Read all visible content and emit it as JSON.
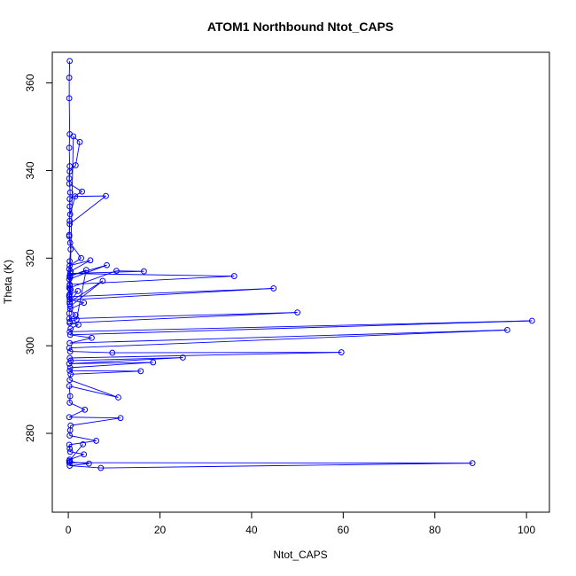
{
  "chart_data": {
    "type": "scatter",
    "title": "ATOM1 Northbound Ntot_CAPS",
    "xlabel": "Ntot_CAPS",
    "ylabel": "Theta (K)",
    "xlim": [
      -3.5,
      105
    ],
    "ylim": [
      262,
      367
    ],
    "x_ticks": [
      0,
      20,
      40,
      60,
      80,
      100
    ],
    "y_ticks": [
      280,
      300,
      320,
      340,
      360
    ],
    "x_tick_labels": [
      "0",
      "20",
      "40",
      "60",
      "80",
      "100"
    ],
    "y_tick_labels": [
      "280",
      "300",
      "320",
      "340",
      "360"
    ],
    "grid": false,
    "line_connected": true,
    "marker": "open-circle",
    "colors": {
      "series": "#0000ff",
      "axes": "#000000"
    },
    "series": [
      {
        "x": [
          0.3,
          0.2,
          0.2,
          0.3,
          0.2,
          0.3,
          0.2,
          0.4,
          0.3,
          0.3,
          0.2,
          0.5,
          0.3,
          0.2,
          0.4,
          0.3,
          0.2,
          0.3,
          1.1,
          2.5,
          1.6,
          0.3,
          0.2,
          3.0,
          0.3,
          0.4,
          1.5,
          8.2,
          0.3,
          0.2,
          0.4,
          2.8,
          0.3,
          4.8,
          0.5,
          0.3,
          8.4,
          0.2,
          0.4,
          0.3,
          2.1,
          0.3,
          7.5,
          0.4,
          0.2,
          0.3,
          1.8,
          3.9,
          0.3,
          0.2,
          10.5,
          16.5,
          0.4,
          36.2,
          0.3,
          0.5,
          0.2,
          44.8,
          0.3,
          3.4,
          0.4,
          1.6,
          0.2,
          50.0,
          0.3,
          2.2,
          0.5,
          0.3,
          101.2,
          0.4,
          5.1,
          0.3,
          95.8,
          0.2,
          0.4,
          9.6,
          59.6,
          0.3,
          0.5,
          25.0,
          0.2,
          18.5,
          0.4,
          0.3,
          15.8,
          0.5,
          0.3,
          10.9,
          0.2,
          0.4,
          0.3,
          3.6,
          0.2,
          11.4,
          0.5,
          0.4,
          0.3,
          6.1,
          0.2,
          0.3,
          0.4,
          3.4,
          0.3,
          0.2,
          88.2,
          7.1,
          0.3,
          4.5,
          0.4,
          0.2,
          3.2
        ],
        "y": [
          365.0,
          361.2,
          356.5,
          348.3,
          345.2,
          341.0,
          338.2,
          335.0,
          331.8,
          328.5,
          325.3,
          322.0,
          319.3,
          317.5,
          315.6,
          313.8,
          311.5,
          309.6,
          347.8,
          346.5,
          341.2,
          339.8,
          337.0,
          335.2,
          333.5,
          330.0,
          334.1,
          334.2,
          327.8,
          325.0,
          323.5,
          320.0,
          318.3,
          319.5,
          317.0,
          316.0,
          318.4,
          315.2,
          313.0,
          311.8,
          312.5,
          310.0,
          314.8,
          309.0,
          307.4,
          305.5,
          306.0,
          317.3,
          315.8,
          313.2,
          317.1,
          317.0,
          316.5,
          315.9,
          314.0,
          312.8,
          311.2,
          313.1,
          310.5,
          309.8,
          308.4,
          307.0,
          306.2,
          307.6,
          305.2,
          304.8,
          303.9,
          303.2,
          305.7,
          302.5,
          301.8,
          300.6,
          303.6,
          299.5,
          298.7,
          298.4,
          298.5,
          297.2,
          296.6,
          297.3,
          295.9,
          296.2,
          295.0,
          294.3,
          294.2,
          293.5,
          292.2,
          288.2,
          290.8,
          288.5,
          287.0,
          285.4,
          283.7,
          283.5,
          281.8,
          280.7,
          279.5,
          278.3,
          277.4,
          276.5,
          275.8,
          275.2,
          274.0,
          273.3,
          273.2,
          272.1,
          272.6,
          273.1,
          273.5,
          273.7,
          277.5
        ]
      }
    ]
  }
}
